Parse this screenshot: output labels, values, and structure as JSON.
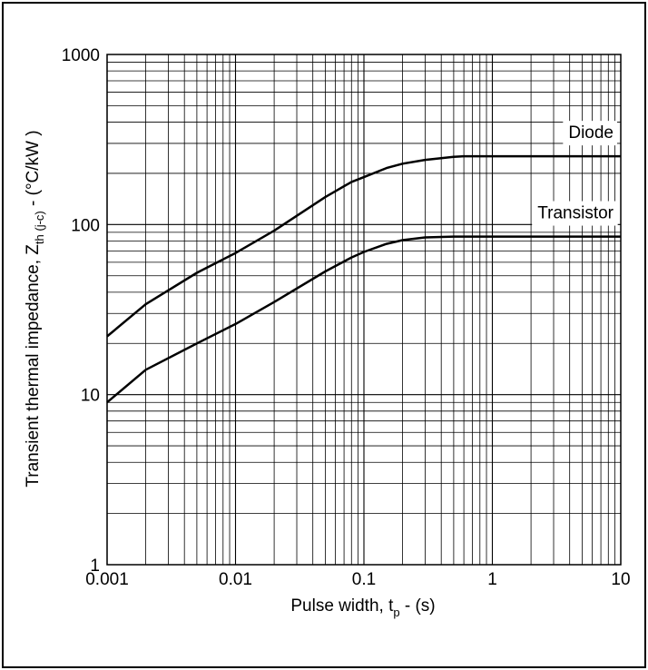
{
  "chart_data": {
    "type": "line",
    "title": "",
    "xlabel": {
      "main": "Pulse width, t",
      "sub": "p",
      "suffix": " - (s)"
    },
    "ylabel": {
      "main": "Transient thermal impedance, Z",
      "sub": "th (j-c)",
      "suffix": " - (°C/kW )"
    },
    "x_scale": "log",
    "y_scale": "log",
    "xlim": [
      0.001,
      10
    ],
    "ylim": [
      1,
      1000
    ],
    "grid": true,
    "x_ticks": [
      "0.001",
      "0.01",
      "0.1",
      "1",
      "10"
    ],
    "y_ticks": [
      "1",
      "10",
      "100",
      "1000"
    ],
    "series": [
      {
        "name": "Diode",
        "x": [
          0.001,
          0.002,
          0.005,
          0.01,
          0.02,
          0.05,
          0.08,
          0.1,
          0.15,
          0.2,
          0.3,
          0.5,
          0.6,
          1,
          2,
          5,
          10
        ],
        "y": [
          22,
          34,
          52,
          68,
          92,
          145,
          178,
          190,
          215,
          228,
          240,
          250,
          252,
          252,
          252,
          252,
          252
        ]
      },
      {
        "name": "Transistor",
        "x": [
          0.001,
          0.002,
          0.005,
          0.01,
          0.02,
          0.05,
          0.08,
          0.1,
          0.15,
          0.2,
          0.3,
          0.5,
          1,
          2,
          5,
          10
        ],
        "y": [
          9,
          14,
          20,
          26,
          35,
          53,
          64,
          69,
          77,
          81,
          84,
          85,
          85,
          85,
          85,
          85
        ]
      }
    ]
  }
}
